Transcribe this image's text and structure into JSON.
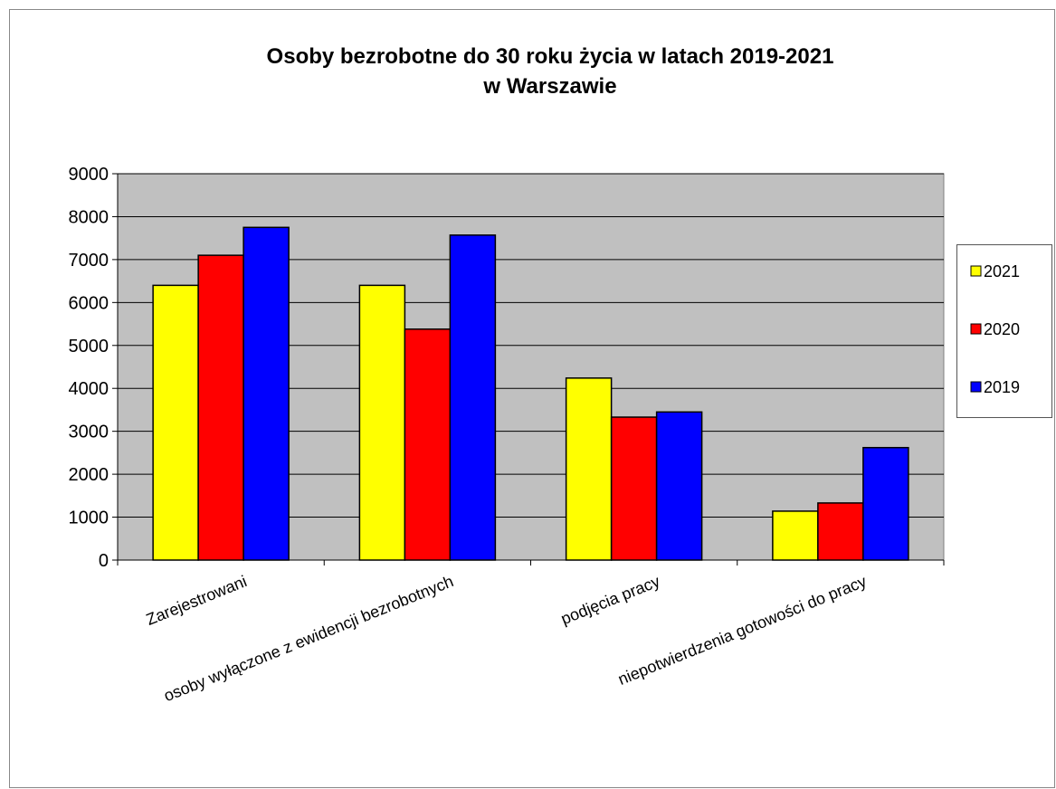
{
  "chart_data": {
    "type": "bar",
    "title": [
      "Osoby bezrobotne do 30 roku życia w latach 2019-2021",
      "w Warszawie"
    ],
    "categories": [
      "Zarejestrowani",
      "osoby wyłączone z ewidencji bezrobotnych",
      "podjęcia pracy",
      "niepotwierdzenia gotowości do pracy"
    ],
    "series": [
      {
        "name": "2021",
        "color": "#ffff00",
        "values": [
          6400,
          6400,
          4240,
          1140
        ]
      },
      {
        "name": "2020",
        "color": "#ff0000",
        "values": [
          7100,
          5380,
          3330,
          1330
        ]
      },
      {
        "name": "2019",
        "color": "#0000ff",
        "values": [
          7750,
          7570,
          3450,
          2620
        ]
      }
    ],
    "ylim": [
      0,
      9000
    ],
    "yticks": [
      0,
      1000,
      2000,
      3000,
      4000,
      5000,
      6000,
      7000,
      8000,
      9000
    ],
    "grid": true,
    "legend": "right"
  }
}
